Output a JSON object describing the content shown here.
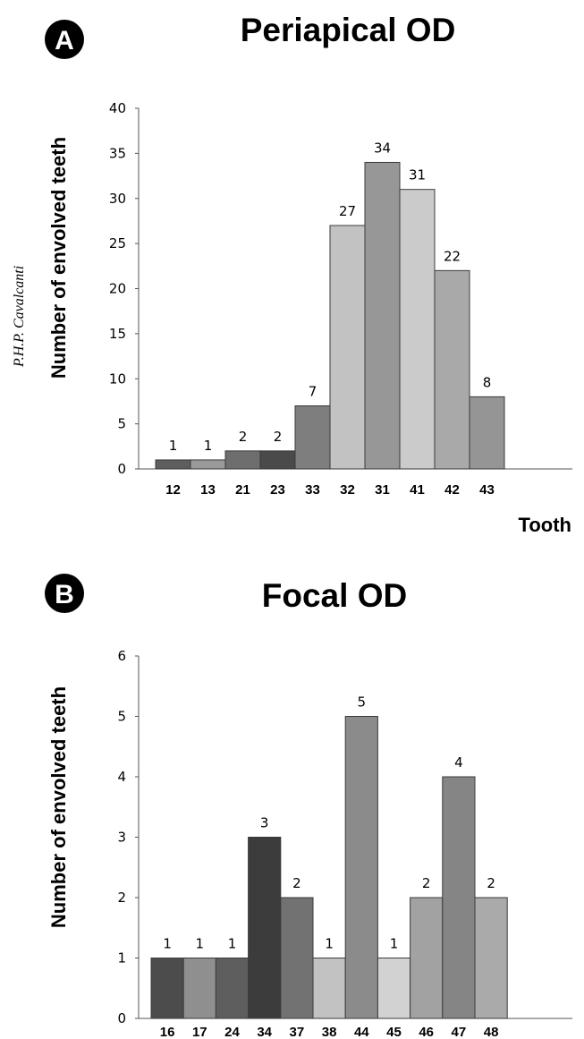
{
  "author_credit": "P.H.P. Cavalcanti",
  "chart_data": [
    {
      "panel": "A",
      "type": "bar",
      "title": "Periapical OD",
      "ylabel": "Number of envolved teeth",
      "xlabel": "Tooth",
      "ylim": [
        0,
        40
      ],
      "yticks": [
        0,
        5,
        10,
        15,
        20,
        25,
        30,
        35,
        40
      ],
      "grid": false,
      "categories": [
        "12",
        "13",
        "21",
        "23",
        "33",
        "32",
        "31",
        "41",
        "42",
        "43"
      ],
      "values": [
        1,
        1,
        2,
        2,
        7,
        27,
        34,
        31,
        22,
        8
      ],
      "colors": [
        "#5e5e5e",
        "#9a9a9a",
        "#6e6e6e",
        "#4a4a4a",
        "#7e7e7e",
        "#c2c2c2",
        "#979797",
        "#cbcbcb",
        "#a9a9a9",
        "#959595"
      ]
    },
    {
      "panel": "B",
      "type": "bar",
      "title": "Focal OD",
      "ylabel": "Number of envolved teeth",
      "xlabel": "",
      "ylim": [
        0,
        6
      ],
      "yticks": [
        0,
        1,
        2,
        3,
        4,
        5,
        6
      ],
      "grid": false,
      "categories": [
        "16",
        "17",
        "24",
        "34",
        "37",
        "38",
        "44",
        "45",
        "46",
        "47",
        "48"
      ],
      "values": [
        1,
        1,
        1,
        3,
        2,
        1,
        5,
        1,
        2,
        4,
        2
      ],
      "colors": [
        "#4c4c4c",
        "#8f8f8f",
        "#5e5e5e",
        "#3c3c3c",
        "#727272",
        "#c2c2c2",
        "#8b8b8b",
        "#d2d2d2",
        "#a2a2a2",
        "#858585",
        "#aaaaaa"
      ]
    }
  ]
}
